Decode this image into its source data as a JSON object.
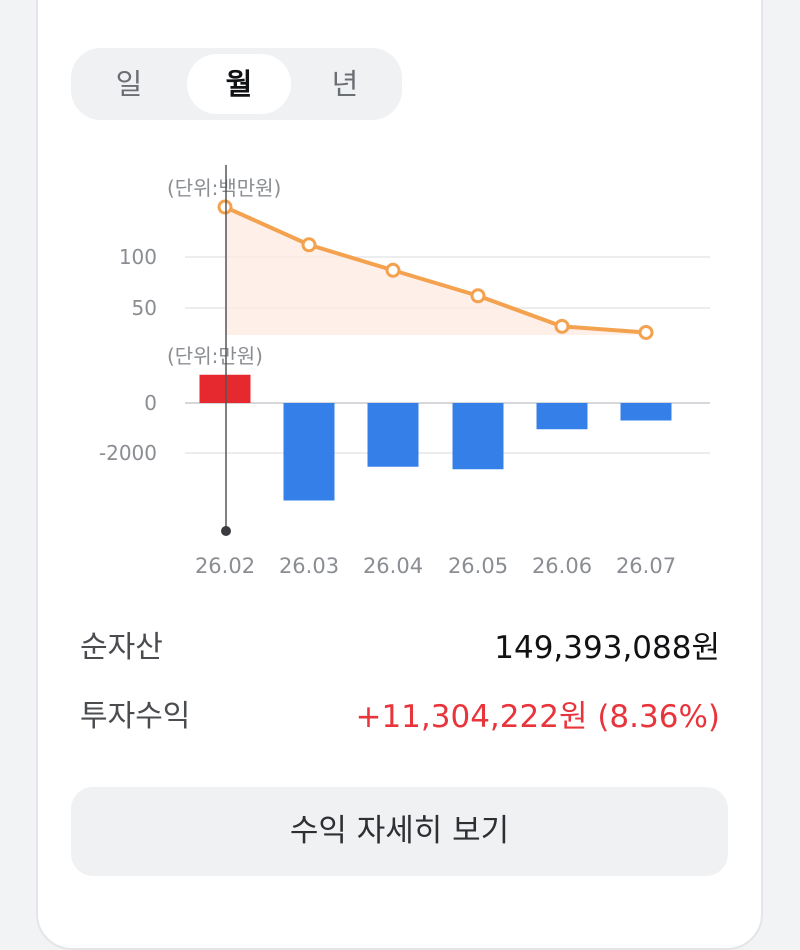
{
  "period_tabs": [
    {
      "label": "일",
      "active": false
    },
    {
      "label": "월",
      "active": true
    },
    {
      "label": "년",
      "active": false
    }
  ],
  "chart_data": [
    {
      "type": "line",
      "unit_label": "(단위:백만원)",
      "categories": [
        "26.02",
        "26.03",
        "26.04",
        "26.05",
        "26.06",
        "26.07"
      ],
      "values": [
        149,
        112,
        87,
        62,
        32,
        26
      ],
      "yticks": [
        100,
        50
      ],
      "ylim": [
        0,
        160
      ],
      "line_color": "#f4a24f",
      "fill_color": "#fdebe0",
      "grid": true
    },
    {
      "type": "bar",
      "unit_label": "(단위:만원)",
      "categories": [
        "26.02",
        "26.03",
        "26.04",
        "26.05",
        "26.06",
        "26.07"
      ],
      "values": [
        1130,
        -3900,
        -2550,
        -2650,
        -1050,
        -700
      ],
      "yticks": [
        0,
        -2000
      ],
      "ylim": [
        -5000,
        1500
      ],
      "positive_color": "#e5292f",
      "negative_color": "#3480e8",
      "grid": true
    }
  ],
  "summary": {
    "net_assets_label": "순자산",
    "net_assets_value": "149,393,088원",
    "profit_label": "투자수익",
    "profit_value": "+11,304,222원 (8.36%)"
  },
  "detail_button_label": "수익 자세히 보기",
  "colors": {
    "profit_red": "#e8343b",
    "segment_bg": "#f0f1f3"
  }
}
